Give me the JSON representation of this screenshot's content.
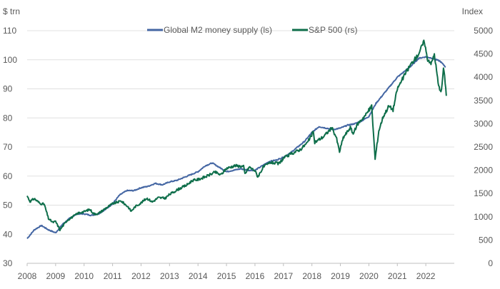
{
  "chart_data": {
    "type": "line",
    "title": "",
    "left_axis": {
      "label": "$ trn",
      "range": [
        30,
        110
      ],
      "ticks": [
        30,
        40,
        50,
        60,
        70,
        80,
        90,
        100,
        110
      ]
    },
    "right_axis": {
      "label": "Index",
      "range": [
        0,
        5000
      ],
      "ticks": [
        0,
        500,
        1000,
        1500,
        2000,
        2500,
        3000,
        3500,
        4000,
        4500,
        5000
      ]
    },
    "x_axis": {
      "range": [
        2008,
        2023
      ],
      "ticks": [
        "2008",
        "2009",
        "2010",
        "2011",
        "2012",
        "2013",
        "2014",
        "2015",
        "2016",
        "2017",
        "2018",
        "2019",
        "2020",
        "2021",
        "2022"
      ]
    },
    "grid": "horizontal",
    "legend_position": "top-center",
    "colors": {
      "m2": "#4466a3",
      "sp500": "#0e6e4a",
      "grid": "#e0e0e0",
      "text": "#595959"
    },
    "series": [
      {
        "name": "Global M2 money supply (ls)",
        "axis": "left",
        "points": [
          [
            2008.0,
            38.5
          ],
          [
            2008.25,
            41.5
          ],
          [
            2008.5,
            43.0
          ],
          [
            2008.75,
            41.5
          ],
          [
            2009.0,
            40.5
          ],
          [
            2009.25,
            43.5
          ],
          [
            2009.5,
            45.5
          ],
          [
            2009.75,
            47.0
          ],
          [
            2010.0,
            47.0
          ],
          [
            2010.25,
            46.5
          ],
          [
            2010.5,
            47.0
          ],
          [
            2010.75,
            48.5
          ],
          [
            2011.0,
            50.5
          ],
          [
            2011.25,
            53.5
          ],
          [
            2011.5,
            55.0
          ],
          [
            2011.75,
            55.0
          ],
          [
            2012.0,
            56.0
          ],
          [
            2012.25,
            56.5
          ],
          [
            2012.5,
            57.5
          ],
          [
            2012.75,
            57.0
          ],
          [
            2013.0,
            58.0
          ],
          [
            2013.25,
            58.5
          ],
          [
            2013.5,
            59.5
          ],
          [
            2013.75,
            60.5
          ],
          [
            2014.0,
            61.5
          ],
          [
            2014.25,
            63.5
          ],
          [
            2014.5,
            64.5
          ],
          [
            2014.75,
            63.0
          ],
          [
            2015.0,
            61.5
          ],
          [
            2015.25,
            62.0
          ],
          [
            2015.5,
            62.5
          ],
          [
            2015.75,
            62.0
          ],
          [
            2016.0,
            62.0
          ],
          [
            2016.25,
            63.5
          ],
          [
            2016.5,
            65.0
          ],
          [
            2016.75,
            65.5
          ],
          [
            2017.0,
            66.5
          ],
          [
            2017.25,
            68.0
          ],
          [
            2017.5,
            70.0
          ],
          [
            2017.75,
            72.0
          ],
          [
            2018.0,
            75.0
          ],
          [
            2018.25,
            77.0
          ],
          [
            2018.5,
            76.5
          ],
          [
            2018.75,
            76.0
          ],
          [
            2019.0,
            76.5
          ],
          [
            2019.25,
            77.5
          ],
          [
            2019.5,
            78.0
          ],
          [
            2019.75,
            79.0
          ],
          [
            2020.0,
            80.5
          ],
          [
            2020.25,
            85.0
          ],
          [
            2020.5,
            88.0
          ],
          [
            2020.75,
            91.0
          ],
          [
            2021.0,
            94.0
          ],
          [
            2021.25,
            96.0
          ],
          [
            2021.5,
            98.0
          ],
          [
            2021.75,
            100.5
          ],
          [
            2022.0,
            101.0
          ],
          [
            2022.25,
            100.5
          ],
          [
            2022.5,
            99.5
          ],
          [
            2022.7,
            97.5
          ]
        ]
      },
      {
        "name": "S&P 500 (rs)",
        "axis": "right",
        "points": [
          [
            2008.0,
            1450
          ],
          [
            2008.1,
            1330
          ],
          [
            2008.25,
            1390
          ],
          [
            2008.45,
            1290
          ],
          [
            2008.6,
            1270
          ],
          [
            2008.75,
            960
          ],
          [
            2008.9,
            880
          ],
          [
            2009.0,
            900
          ],
          [
            2009.15,
            720
          ],
          [
            2009.25,
            800
          ],
          [
            2009.4,
            920
          ],
          [
            2009.6,
            1000
          ],
          [
            2009.8,
            1080
          ],
          [
            2010.0,
            1110
          ],
          [
            2010.2,
            1160
          ],
          [
            2010.35,
            1060
          ],
          [
            2010.5,
            1070
          ],
          [
            2010.75,
            1180
          ],
          [
            2011.0,
            1280
          ],
          [
            2011.3,
            1340
          ],
          [
            2011.55,
            1210
          ],
          [
            2011.65,
            1120
          ],
          [
            2011.8,
            1220
          ],
          [
            2012.0,
            1300
          ],
          [
            2012.2,
            1400
          ],
          [
            2012.4,
            1320
          ],
          [
            2012.6,
            1410
          ],
          [
            2012.85,
            1400
          ],
          [
            2013.0,
            1480
          ],
          [
            2013.3,
            1590
          ],
          [
            2013.6,
            1680
          ],
          [
            2013.8,
            1780
          ],
          [
            2014.0,
            1800
          ],
          [
            2014.3,
            1870
          ],
          [
            2014.6,
            1960
          ],
          [
            2014.8,
            1900
          ],
          [
            2015.0,
            2040
          ],
          [
            2015.3,
            2100
          ],
          [
            2015.6,
            2080
          ],
          [
            2015.65,
            1920
          ],
          [
            2015.8,
            2070
          ],
          [
            2016.0,
            1990
          ],
          [
            2016.1,
            1860
          ],
          [
            2016.3,
            2070
          ],
          [
            2016.55,
            2170
          ],
          [
            2016.85,
            2140
          ],
          [
            2017.0,
            2260
          ],
          [
            2017.3,
            2360
          ],
          [
            2017.6,
            2450
          ],
          [
            2017.85,
            2600
          ],
          [
            2018.05,
            2820
          ],
          [
            2018.1,
            2600
          ],
          [
            2018.4,
            2720
          ],
          [
            2018.7,
            2910
          ],
          [
            2018.85,
            2720
          ],
          [
            2018.97,
            2400
          ],
          [
            2019.1,
            2700
          ],
          [
            2019.35,
            2920
          ],
          [
            2019.45,
            2780
          ],
          [
            2019.6,
            2990
          ],
          [
            2019.9,
            3200
          ],
          [
            2020.1,
            3380
          ],
          [
            2020.22,
            2240
          ],
          [
            2020.35,
            2850
          ],
          [
            2020.5,
            3150
          ],
          [
            2020.7,
            3380
          ],
          [
            2020.85,
            3300
          ],
          [
            2021.0,
            3750
          ],
          [
            2021.3,
            4100
          ],
          [
            2021.5,
            4300
          ],
          [
            2021.7,
            4450
          ],
          [
            2021.95,
            4780
          ],
          [
            2022.05,
            4400
          ],
          [
            2022.2,
            4300
          ],
          [
            2022.3,
            4500
          ],
          [
            2022.45,
            3800
          ],
          [
            2022.55,
            3700
          ],
          [
            2022.62,
            4200
          ],
          [
            2022.68,
            3900
          ],
          [
            2022.72,
            3600
          ]
        ]
      }
    ]
  }
}
